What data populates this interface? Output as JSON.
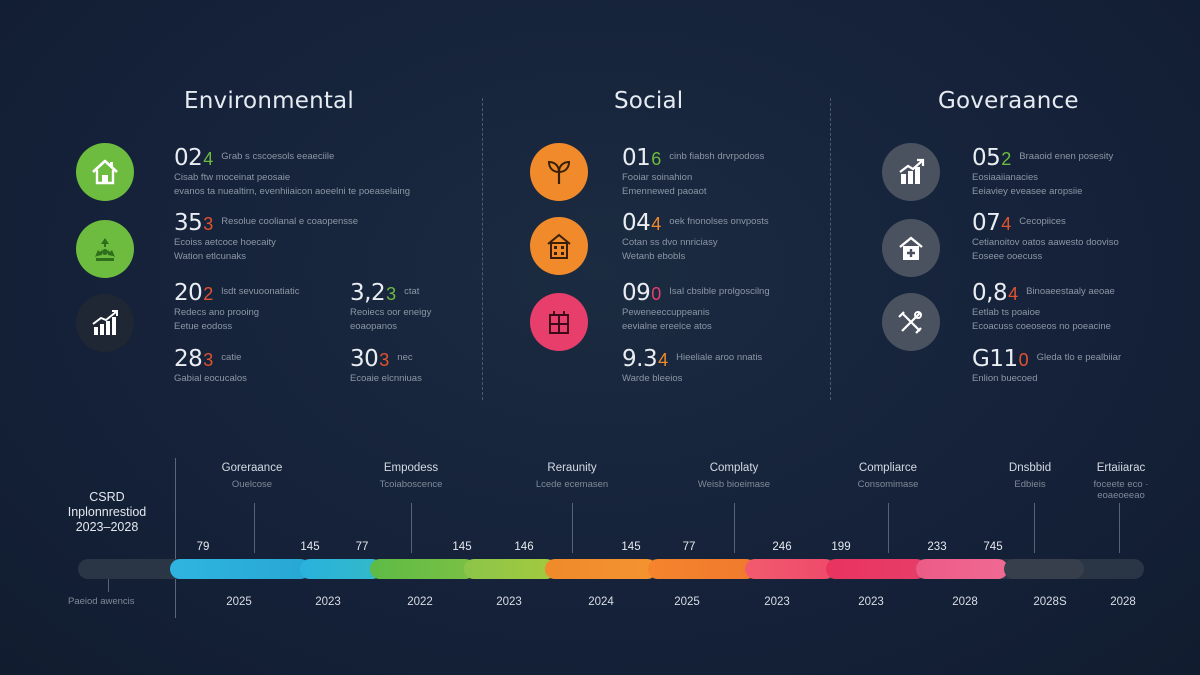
{
  "sections": {
    "environmental": {
      "title": "Environmental",
      "stats": [
        {
          "value": "02",
          "accent": "4",
          "lines": [
            "Grab s cscoesols eeaeciile",
            "Cisab ftw moceinat peosaie",
            "evanos ta nuealtirn, evenhiiaicon aoeelni te poeaselaing"
          ]
        },
        {
          "value": "35",
          "accent": "3",
          "lines": [
            "Resolue coolianal e coaopensse",
            "Ecoiss aetcoce hoecaity",
            "Wation etlcunaks"
          ]
        },
        {
          "value": "20",
          "accent": "2",
          "lines": [
            "lsdt sevuoonatiatic",
            "Redecs ano prooing",
            "Eetue eodoss"
          ]
        },
        {
          "value": "3,2",
          "accent": "3",
          "lines": [
            "ctat",
            "Reoiecs oor eneigy",
            "eoaopanos"
          ]
        },
        {
          "value": "28",
          "accent": "3",
          "lines": [
            "catie",
            "Gabial eocucalos"
          ]
        },
        {
          "value": "30",
          "accent": "3",
          "lines": [
            "nec",
            "Ecoaie elcnniuas"
          ]
        }
      ]
    },
    "social": {
      "title": "Social",
      "stats": [
        {
          "value": "01",
          "accent": "6",
          "lines": [
            "cinb fiabsh drvrpodoss",
            "Fooiar soinahion",
            "Emennewed paoaot"
          ]
        },
        {
          "value": "04",
          "accent": "4",
          "lines": [
            "oek fnonolses onvposts",
            "Cotan ss dvo nnriciasy",
            "Wetanb ebobls"
          ]
        },
        {
          "value": "09",
          "accent": "0",
          "lines": [
            "Isal cbsible prolgoscilng",
            "Peweneeccuppeanis",
            "eevialne ereelce atos"
          ]
        },
        {
          "value": "9.3",
          "accent": "4",
          "lines": [
            "Hieeliale aroo nnatis",
            "Warde bleeios"
          ]
        }
      ]
    },
    "governance": {
      "title": "Goveraance",
      "stats": [
        {
          "value": "05",
          "accent": "2",
          "lines": [
            "Braaoid enen posesity",
            "Eosiaaiianacies",
            "Eeiaviey eveasee aropsiie"
          ]
        },
        {
          "value": "07",
          "accent": "4",
          "lines": [
            "Cecopiices",
            "Cetianoitov oatos aawesto dooviso",
            "Eoseee ooecuss"
          ]
        },
        {
          "value": "0,8",
          "accent": "4",
          "lines": [
            "Binoaeestaaly aeoae",
            "Eetlab ts poaioe",
            "Ecoacuss coeoseos no poeacine"
          ]
        },
        {
          "value": "G11",
          "accent": "0",
          "lines": [
            "Gleda tlo e pealbiiar",
            "Enlion buecoed"
          ]
        }
      ]
    }
  },
  "timeline": {
    "label_lines": [
      "CSRD",
      "Inplonnrestiod",
      "2023–2028"
    ],
    "period_note": "Paeiod awencis",
    "headings": [
      {
        "title": "Goreraance",
        "sub": "Ouelcose"
      },
      {
        "title": "Empodess",
        "sub": "Tcoiaboscence"
      },
      {
        "title": "Reraunity",
        "sub": "Lcede ecemasen"
      },
      {
        "title": "Complaty",
        "sub": "Weisb bioeimase"
      },
      {
        "title": "Compliarce",
        "sub": "Consomimase"
      },
      {
        "title": "Dnsbbid",
        "sub": "Edbieis"
      },
      {
        "title": "Ertaiiarac",
        "sub": "foceete eco · eoaeoeeao"
      }
    ],
    "numbers": [
      "79",
      "145",
      "77",
      "145",
      "146",
      "145",
      "77",
      "246",
      "199",
      "233",
      "745"
    ],
    "years": [
      "2025",
      "2023",
      "2022",
      "2023",
      "2024",
      "2025",
      "2023",
      "2023",
      "2028",
      "2028S",
      "2028"
    ]
  },
  "colors": {
    "green": "#6dbb3f",
    "orange": "#f08a2a",
    "red": "#e2532f",
    "pink": "#e83e6c",
    "blue": "#29b2dd",
    "gray": "#4a5260"
  }
}
